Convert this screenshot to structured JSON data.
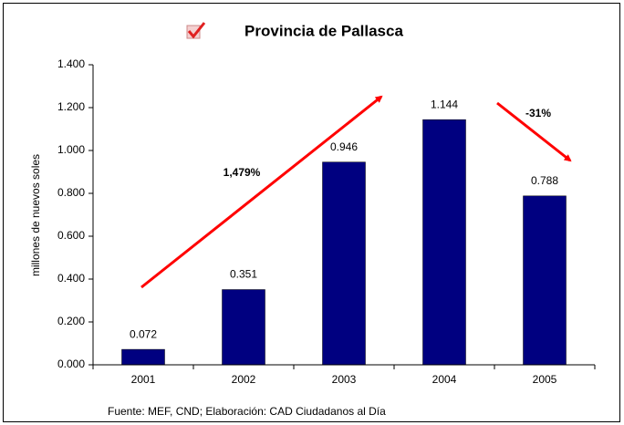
{
  "chart_data": {
    "type": "bar",
    "title": "Provincia de Pallasca",
    "y_label": "millones de nuevos soles",
    "source": "Fuente: MEF, CND; Elaboración: CAD Ciudadanos al Día",
    "annotations": [
      "1,479%",
      "-31%"
    ],
    "categories": [
      "2001",
      "2002",
      "2003",
      "2004",
      "2005"
    ],
    "values": [
      0.072,
      0.351,
      0.946,
      1.144,
      0.788
    ],
    "color": "#000080",
    "ylim": [
      0,
      1.4
    ],
    "yticks": [
      {
        "value": 0,
        "label": "0.000"
      },
      {
        "value": 0.2,
        "label": "0.200"
      },
      {
        "value": 0.4,
        "label": "0.400"
      },
      {
        "value": 0.6,
        "label": "0.600"
      },
      {
        "value": 0.8,
        "label": "0.800"
      },
      {
        "value": 1.0,
        "label": "1.000"
      },
      {
        "value": 1.2,
        "label": "1.200"
      },
      {
        "value": 1.4,
        "label": "1.400"
      }
    ],
    "grid": false
  }
}
